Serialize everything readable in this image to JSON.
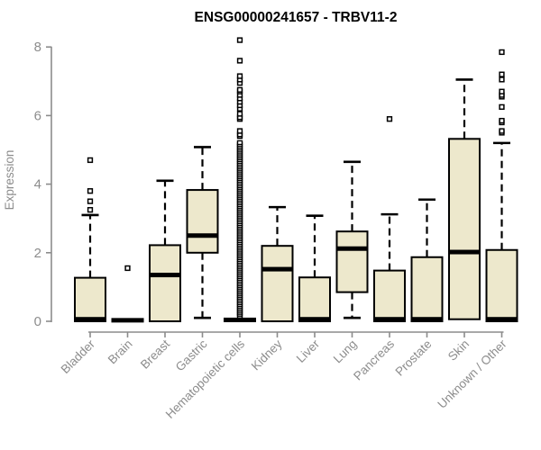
{
  "title": "ENSG00000241657 - TRBV11-2",
  "colors": {
    "background": "#ffffff",
    "box_fill": "#EDE8CC",
    "box_stroke": "#000000",
    "median": "#000000",
    "whisker": "#000000",
    "outlier_stroke": "#000000",
    "outlier_fill": "#ffffff",
    "axis_line": "#8c8c8c",
    "tick_label": "#8c8c8c",
    "axis_title": "#8c8c8c",
    "title_color": "#000000"
  },
  "chart_data": {
    "type": "boxplot",
    "title": "ENSG00000241657 - TRBV11-2",
    "xlabel": "",
    "ylabel": "Expression",
    "ylim": [
      0,
      8
    ],
    "yticks": [
      0,
      2,
      4,
      6,
      8
    ],
    "grid": false,
    "legend": "none",
    "categories": [
      "Bladder",
      "Brain",
      "Breast",
      "Gastric",
      "Hematopoietic cells",
      "Kidney",
      "Liver",
      "Lung",
      "Pancreas",
      "Prostate",
      "Skin",
      "Unknown / Other"
    ],
    "series": [
      {
        "name": "Bladder",
        "whisker_low": 0,
        "q1": 0,
        "median": 0.06,
        "q3": 1.27,
        "whisker_high": 3.1,
        "outliers": [
          3.25,
          3.5,
          3.8,
          4.7
        ],
        "outlier_band": null
      },
      {
        "name": "Brain",
        "whisker_low": 0,
        "q1": 0,
        "median": 0.03,
        "q3": 0.06,
        "whisker_high": 0.08,
        "outliers": [
          1.55
        ],
        "outlier_band": null
      },
      {
        "name": "Breast",
        "whisker_low": 0,
        "q1": 0,
        "median": 1.35,
        "q3": 2.22,
        "whisker_high": 4.1,
        "outliers": [],
        "outlier_band": null
      },
      {
        "name": "Gastric",
        "whisker_low": 0.1,
        "q1": 2.0,
        "median": 2.5,
        "q3": 3.83,
        "whisker_high": 5.08,
        "outliers": [],
        "outlier_band": null
      },
      {
        "name": "Hematopoietic cells",
        "whisker_low": 0,
        "q1": 0,
        "median": 0.04,
        "q3": 0.08,
        "whisker_high": 0.1,
        "outliers": [
          5.4,
          5.45,
          5.55,
          5.9,
          5.95,
          6.05,
          6.2,
          6.3,
          6.4,
          6.5,
          6.6,
          6.7,
          6.75,
          6.95,
          7.05,
          7.15,
          7.6,
          8.2
        ],
        "outlier_band": {
          "min": 0.15,
          "max": 5.25,
          "step": 0.055
        }
      },
      {
        "name": "Kidney",
        "whisker_low": 0,
        "q1": 0,
        "median": 1.52,
        "q3": 2.2,
        "whisker_high": 3.33,
        "outliers": [],
        "outlier_band": null
      },
      {
        "name": "Liver",
        "whisker_low": 0,
        "q1": 0,
        "median": 0.06,
        "q3": 1.28,
        "whisker_high": 3.08,
        "outliers": [],
        "outlier_band": null
      },
      {
        "name": "Lung",
        "whisker_low": 0.1,
        "q1": 0.85,
        "median": 2.12,
        "q3": 2.62,
        "whisker_high": 4.65,
        "outliers": [],
        "outlier_band": null
      },
      {
        "name": "Pancreas",
        "whisker_low": 0,
        "q1": 0,
        "median": 0.06,
        "q3": 1.48,
        "whisker_high": 3.12,
        "outliers": [
          5.9
        ],
        "outlier_band": null
      },
      {
        "name": "Prostate",
        "whisker_low": 0,
        "q1": 0,
        "median": 0.06,
        "q3": 1.87,
        "whisker_high": 3.55,
        "outliers": [],
        "outlier_band": null
      },
      {
        "name": "Skin",
        "whisker_low": 0,
        "q1": 0.06,
        "median": 2.02,
        "q3": 5.32,
        "whisker_high": 7.05,
        "outliers": [],
        "outlier_band": null
      },
      {
        "name": "Unknown / Other",
        "whisker_low": 0,
        "q1": 0,
        "median": 0.06,
        "q3": 2.08,
        "whisker_high": 5.2,
        "outliers": [
          5.5,
          5.55,
          5.8,
          5.85,
          6.25,
          6.55,
          6.6,
          6.7,
          7.05,
          7.2,
          7.85
        ],
        "outlier_band": null
      }
    ]
  }
}
